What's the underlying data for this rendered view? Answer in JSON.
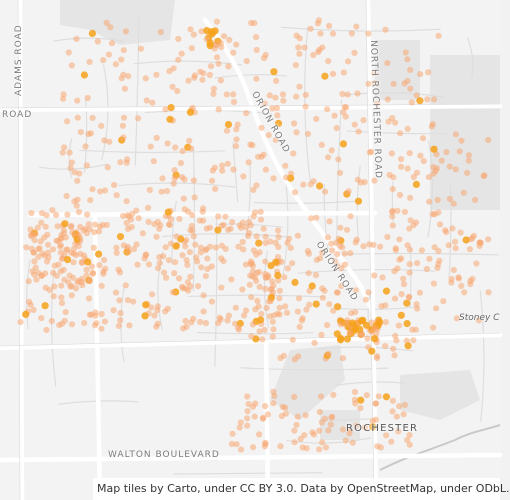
{
  "map": {
    "roads": {
      "adams": "ADAMS ROAD",
      "tienken": "ROAD",
      "orion": "ORION ROAD",
      "north_rochester": "NORTH ROCHESTER ROAD",
      "walton": "WALTON BOULEVARD"
    },
    "places": {
      "rochester": "ROCHESTER",
      "stoney_creek": "Stoney C"
    },
    "attribution": "Map tiles by Carto, under CC BY 3.0. Data by OpenStreetMap, under ODbL.",
    "colors": {
      "background": "#f3f3f3",
      "major_road": "#ffffff",
      "minor_road": "#e4e4e4",
      "park": "#e6e6e6",
      "water": "#d0d0d0",
      "dot": "#f7a772",
      "dot_hot": "#f6a11a"
    }
  }
}
